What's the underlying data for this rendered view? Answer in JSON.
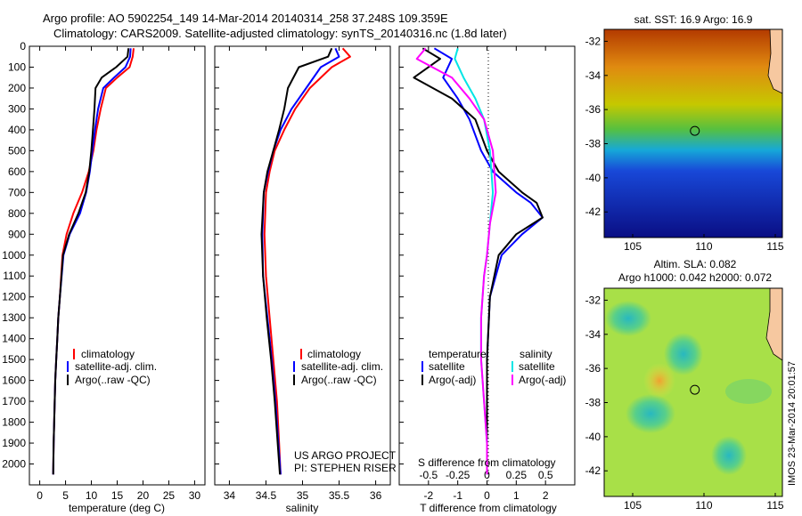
{
  "header": {
    "title_line1": "Argo profile: AO 5902254_149 14-Mar-2014 20140314_258 37.248S 109.359E",
    "title_line2": "Climatology: CARS2009. Satellite-adjusted climatology: synTS_20140316.nc (1.8d later)"
  },
  "colors": {
    "climatology": "#ff0000",
    "satellite": "#0000ff",
    "argo": "#000000",
    "sal_satellite": "#00e5e5",
    "sal_argo": "#ff00ff"
  },
  "chart_data": [
    {
      "type": "line",
      "name": "temperature-profile",
      "xlabel": "temperature (deg C)",
      "ylabel": "",
      "xlim": [
        -2,
        32
      ],
      "ylim": [
        2100,
        0
      ],
      "xticks": [
        0,
        5,
        10,
        15,
        20,
        25,
        30
      ],
      "yticks": [
        0,
        100,
        200,
        300,
        400,
        500,
        600,
        700,
        800,
        900,
        1000,
        1100,
        1200,
        1300,
        1400,
        1500,
        1600,
        1700,
        1800,
        1900,
        2000
      ],
      "legend": [
        "climatology",
        "satellite-adj. clim.",
        "Argo(..raw -QC)"
      ],
      "series": [
        {
          "name": "climatology",
          "color": "#ff0000",
          "x": [
            18.2,
            18.0,
            17.4,
            15.0,
            12.8,
            11.8,
            11.0,
            10.4,
            9.5,
            8.2,
            6.5,
            5.2,
            4.4,
            3.9,
            3.6,
            3.4,
            3.2,
            3.0,
            2.8,
            2.7,
            2.6
          ],
          "y": [
            10,
            50,
            100,
            150,
            200,
            300,
            400,
            500,
            600,
            700,
            800,
            900,
            1000,
            1200,
            1300,
            1400,
            1500,
            1600,
            1800,
            1900,
            2050
          ]
        },
        {
          "name": "satellite-adj. clim.",
          "color": "#0000ff",
          "x": [
            17.6,
            17.5,
            16.6,
            14.4,
            12.3,
            11.3,
            10.7,
            10.2,
            9.7,
            9.0,
            7.8,
            5.8,
            4.6,
            3.9,
            3.6,
            3.4,
            3.2,
            3.0,
            2.8,
            2.7,
            2.6
          ],
          "y": [
            10,
            50,
            100,
            150,
            200,
            300,
            400,
            500,
            600,
            700,
            800,
            900,
            1000,
            1200,
            1300,
            1400,
            1500,
            1600,
            1800,
            1900,
            2050
          ]
        },
        {
          "name": "Argo(..raw -QC)",
          "color": "#000000",
          "x": [
            17.2,
            17.0,
            14.8,
            12.0,
            10.8,
            10.6,
            10.3,
            10.0,
            9.6,
            8.9,
            7.5,
            5.7,
            4.5,
            3.9,
            3.6,
            3.4,
            3.2,
            3.0,
            2.8,
            2.7,
            2.6
          ],
          "y": [
            10,
            50,
            100,
            150,
            200,
            300,
            400,
            500,
            600,
            700,
            800,
            900,
            1000,
            1200,
            1300,
            1400,
            1500,
            1600,
            1800,
            1900,
            2050
          ]
        }
      ]
    },
    {
      "type": "line",
      "name": "salinity-profile",
      "xlabel": "salinity",
      "xlim": [
        33.8,
        36.2
      ],
      "ylim": [
        2100,
        0
      ],
      "xticks": [
        34,
        34.5,
        35,
        35.5,
        36
      ],
      "legend": [
        "climatology",
        "satellite-adj. clim.",
        "Argo(..raw -QC)"
      ],
      "annotation": [
        "US ARGO PROJECT",
        "PI: STEPHEN RISER"
      ],
      "series": [
        {
          "name": "climatology",
          "color": "#ff0000",
          "x": [
            35.55,
            35.65,
            35.4,
            35.1,
            34.9,
            34.75,
            34.62,
            34.55,
            34.5,
            34.48,
            34.5,
            34.55,
            34.6,
            34.65,
            34.68,
            34.7
          ],
          "y": [
            10,
            50,
            100,
            200,
            300,
            400,
            500,
            600,
            700,
            900,
            1100,
            1300,
            1500,
            1700,
            1900,
            2050
          ]
        },
        {
          "name": "satellite-adj. clim.",
          "color": "#0000ff",
          "x": [
            35.45,
            35.5,
            35.25,
            35.05,
            34.85,
            34.7,
            34.6,
            34.53,
            34.47,
            34.45,
            34.46,
            34.52,
            34.58,
            34.63,
            34.67,
            34.7
          ],
          "y": [
            10,
            50,
            100,
            200,
            300,
            400,
            500,
            600,
            700,
            900,
            1100,
            1300,
            1500,
            1700,
            1900,
            2050
          ]
        },
        {
          "name": "Argo(..raw -QC)",
          "color": "#000000",
          "x": [
            35.4,
            35.35,
            34.95,
            34.8,
            34.75,
            34.68,
            34.6,
            34.52,
            34.47,
            34.44,
            34.46,
            34.51,
            34.57,
            34.62,
            34.66,
            34.69
          ],
          "y": [
            10,
            50,
            100,
            200,
            300,
            400,
            500,
            600,
            700,
            900,
            1100,
            1300,
            1500,
            1700,
            1900,
            2050
          ]
        }
      ]
    },
    {
      "type": "line",
      "name": "difference-profile",
      "xlabel": "T difference from climatology",
      "x2label": "S difference from climatology",
      "xlim": [
        -3,
        3
      ],
      "ylim": [
        2100,
        0
      ],
      "xticks": [
        -2,
        -1,
        0,
        1,
        2
      ],
      "x2ticks": [
        "-0.5",
        "-0.25",
        "0",
        "0.25",
        "0.5"
      ],
      "legend_temperature_title": "temperature",
      "legend_salinity_title": "salinity",
      "legend_temperature": [
        "satellite",
        "Argo(-adj)"
      ],
      "legend_salinity": [
        "satellite",
        "Argo(-adj)"
      ],
      "series": [
        {
          "name": "temperature satellite",
          "color": "#0000ff",
          "x": [
            -1.8,
            -1.2,
            -1.5,
            -1.0,
            -0.6,
            -0.2,
            0.2,
            0.6,
            1.0,
            1.5,
            1.9,
            1.2,
            0.5,
            0.1,
            0.0,
            0.0
          ],
          "y": [
            10,
            60,
            150,
            250,
            350,
            500,
            600,
            650,
            700,
            750,
            820,
            900,
            1000,
            1200,
            1500,
            2050
          ]
        },
        {
          "name": "temperature Argo(-adj)",
          "color": "#000000",
          "x": [
            -2.2,
            -1.6,
            -2.5,
            -1.2,
            -0.4,
            0.0,
            0.4,
            0.8,
            1.2,
            1.7,
            1.9,
            1.0,
            0.4,
            0.1,
            0.0,
            0.0
          ],
          "y": [
            10,
            60,
            150,
            250,
            350,
            500,
            600,
            650,
            700,
            750,
            820,
            900,
            1000,
            1200,
            1500,
            2050
          ]
        },
        {
          "name": "salinity satellite",
          "color": "#00e5e5",
          "x": [
            -1.0,
            -1.1,
            -0.8,
            -0.4,
            -0.1,
            0.1,
            0.2,
            0.1,
            0.0,
            -0.1,
            -0.2,
            -0.2,
            -0.1,
            0.0,
            0.0
          ],
          "y": [
            10,
            60,
            150,
            250,
            350,
            500,
            700,
            850,
            1000,
            1100,
            1300,
            1500,
            1700,
            1900,
            2050
          ]
        },
        {
          "name": "salinity Argo(-adj)",
          "color": "#ff00ff",
          "x": [
            -2.1,
            -2.4,
            -1.2,
            -0.6,
            -0.1,
            0.2,
            0.3,
            0.1,
            0.0,
            -0.1,
            -0.2,
            -0.2,
            -0.1,
            0.0,
            0.0
          ],
          "y": [
            10,
            60,
            150,
            250,
            350,
            500,
            700,
            850,
            1000,
            1100,
            1300,
            1500,
            1700,
            1900,
            2050
          ]
        }
      ]
    },
    {
      "type": "heatmap",
      "name": "sst-map",
      "title": "sat. SST: 16.9 Argo: 16.9",
      "xlim": [
        103,
        115.5
      ],
      "ylim": [
        -43.5,
        -31.3
      ],
      "xticks": [
        105,
        110,
        115
      ],
      "yticks": [
        -32,
        -34,
        -36,
        -38,
        -40,
        -42
      ],
      "marker": {
        "lon": 109.359,
        "lat": -37.248
      }
    },
    {
      "type": "heatmap",
      "name": "sla-map",
      "title_line1": "Altim. SLA: 0.082",
      "title_line2": "Argo h1000: 0.042 h2000: 0.072",
      "xlim": [
        103,
        115.5
      ],
      "ylim": [
        -43.5,
        -31.3
      ],
      "xticks": [
        105,
        110,
        115
      ],
      "yticks": [
        -32,
        -34,
        -36,
        -38,
        -40,
        -42
      ],
      "marker": {
        "lon": 109.359,
        "lat": -37.248
      }
    }
  ],
  "footer": {
    "imos_stamp": "IMOS 23-Mar-2014 20:01:57"
  }
}
